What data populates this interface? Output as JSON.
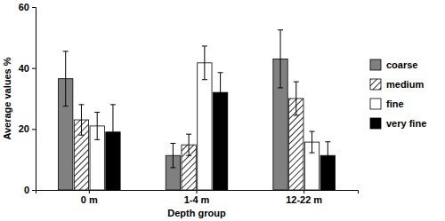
{
  "chart_data": {
    "type": "bar",
    "x_label": "Depth group",
    "y_label": "Average values %",
    "categories": [
      "0 m",
      "1-4 m",
      "12-22 m"
    ],
    "series": [
      {
        "name": "coarse",
        "color": "#808080",
        "values": [
          36.5,
          11.3,
          43
        ],
        "errors": [
          9,
          4,
          9.5
        ]
      },
      {
        "name": "medium",
        "color": "#000000",
        "marker": "hatch",
        "values": [
          23,
          14.8,
          30
        ],
        "errors": [
          5,
          3.5,
          5.5
        ]
      },
      {
        "name": "fine",
        "color": "#ffffff",
        "values": [
          21,
          41.7,
          15.7
        ],
        "errors": [
          4.5,
          5.5,
          3.5
        ]
      },
      {
        "name": "very fine",
        "color": "#000000",
        "values": [
          19,
          32,
          11.3
        ],
        "errors": [
          9,
          6.5,
          4.5
        ]
      }
    ],
    "ylim": [
      0,
      60
    ],
    "yticks": [
      0,
      20,
      40,
      60
    ],
    "legend": "right"
  }
}
